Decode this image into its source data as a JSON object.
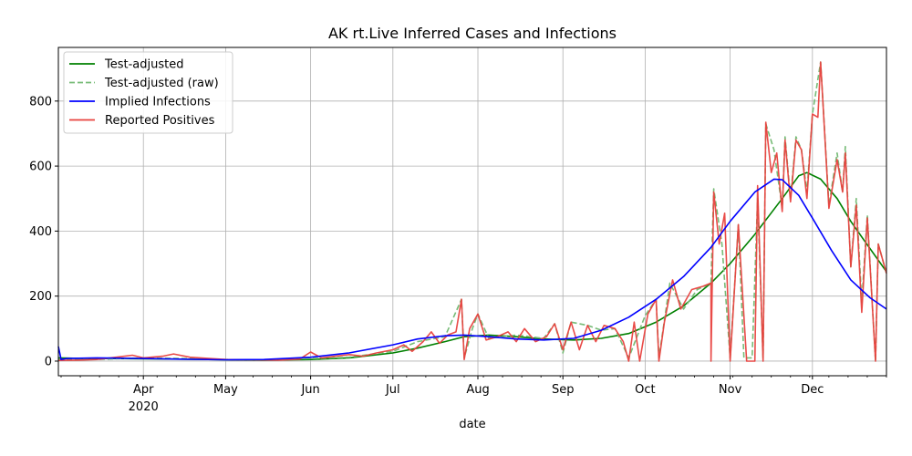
{
  "chart_data": {
    "type": "line",
    "title": "AK rt.Live Inferred Cases and Infections",
    "xlabel": "date",
    "ylabel": "",
    "x_range": [
      "2020-03-01",
      "2020-12-28"
    ],
    "ylim": [
      -45,
      965
    ],
    "y_ticks": [
      0,
      200,
      400,
      600,
      800
    ],
    "x_ticks": [
      {
        "date": "2020-04-01",
        "label": "Apr",
        "sublabel": "2020"
      },
      {
        "date": "2020-05-01",
        "label": "May",
        "sublabel": ""
      },
      {
        "date": "2020-06-01",
        "label": "Jun",
        "sublabel": ""
      },
      {
        "date": "2020-07-01",
        "label": "Jul",
        "sublabel": ""
      },
      {
        "date": "2020-08-01",
        "label": "Aug",
        "sublabel": ""
      },
      {
        "date": "2020-09-01",
        "label": "Sep",
        "sublabel": ""
      },
      {
        "date": "2020-10-01",
        "label": "Oct",
        "sublabel": ""
      },
      {
        "date": "2020-11-01",
        "label": "Nov",
        "sublabel": ""
      },
      {
        "date": "2020-12-01",
        "label": "Dec",
        "sublabel": ""
      }
    ],
    "grid": true,
    "legend_position": "top-left",
    "series": [
      {
        "name": "Test-adjusted",
        "color": "#008000",
        "style": "solid",
        "points": [
          [
            "2020-03-01",
            10
          ],
          [
            "2020-03-10",
            8
          ],
          [
            "2020-03-20",
            8
          ],
          [
            "2020-04-01",
            7
          ],
          [
            "2020-04-15",
            6
          ],
          [
            "2020-05-01",
            4
          ],
          [
            "2020-05-15",
            3
          ],
          [
            "2020-06-01",
            5
          ],
          [
            "2020-06-15",
            10
          ],
          [
            "2020-07-01",
            25
          ],
          [
            "2020-07-10",
            40
          ],
          [
            "2020-07-20",
            60
          ],
          [
            "2020-07-27",
            75
          ],
          [
            "2020-08-05",
            80
          ],
          [
            "2020-08-15",
            75
          ],
          [
            "2020-08-25",
            68
          ],
          [
            "2020-09-05",
            65
          ],
          [
            "2020-09-15",
            70
          ],
          [
            "2020-09-25",
            85
          ],
          [
            "2020-10-05",
            120
          ],
          [
            "2020-10-15",
            170
          ],
          [
            "2020-10-25",
            240
          ],
          [
            "2020-11-01",
            300
          ],
          [
            "2020-11-10",
            390
          ],
          [
            "2020-11-20",
            500
          ],
          [
            "2020-11-26",
            570
          ],
          [
            "2020-11-29",
            580
          ],
          [
            "2020-12-04",
            560
          ],
          [
            "2020-12-10",
            500
          ],
          [
            "2020-12-15",
            430
          ],
          [
            "2020-12-20",
            370
          ],
          [
            "2020-12-28",
            275
          ]
        ]
      },
      {
        "name": "Test-adjusted (raw)",
        "color": "#77bb77",
        "style": "dashed",
        "points": [
          [
            "2020-03-01",
            5
          ],
          [
            "2020-03-15",
            5
          ],
          [
            "2020-04-01",
            10
          ],
          [
            "2020-04-15",
            8
          ],
          [
            "2020-05-01",
            5
          ],
          [
            "2020-05-15",
            4
          ],
          [
            "2020-06-01",
            8
          ],
          [
            "2020-06-15",
            12
          ],
          [
            "2020-07-01",
            30
          ],
          [
            "2020-07-10",
            60
          ],
          [
            "2020-07-20",
            75
          ],
          [
            "2020-07-26",
            190
          ],
          [
            "2020-07-27",
            10
          ],
          [
            "2020-07-30",
            100
          ],
          [
            "2020-08-01",
            145
          ],
          [
            "2020-08-05",
            70
          ],
          [
            "2020-08-15",
            80
          ],
          [
            "2020-08-25",
            70
          ],
          [
            "2020-08-29",
            115
          ],
          [
            "2020-09-01",
            25
          ],
          [
            "2020-09-04",
            120
          ],
          [
            "2020-09-10",
            110
          ],
          [
            "2020-09-15",
            95
          ],
          [
            "2020-09-20",
            100
          ],
          [
            "2020-09-25",
            10
          ],
          [
            "2020-10-01",
            140
          ],
          [
            "2020-10-05",
            190
          ],
          [
            "2020-10-06",
            10
          ],
          [
            "2020-10-10",
            240
          ],
          [
            "2020-10-15",
            160
          ],
          [
            "2020-10-20",
            220
          ],
          [
            "2020-10-25",
            240
          ],
          [
            "2020-10-26",
            530
          ],
          [
            "2020-10-29",
            360
          ],
          [
            "2020-11-01",
            10
          ],
          [
            "2020-11-04",
            420
          ],
          [
            "2020-11-06",
            10
          ],
          [
            "2020-11-09",
            10
          ],
          [
            "2020-11-11",
            500
          ],
          [
            "2020-11-13",
            10
          ],
          [
            "2020-11-14",
            730
          ],
          [
            "2020-11-17",
            650
          ],
          [
            "2020-11-20",
            470
          ],
          [
            "2020-11-21",
            690
          ],
          [
            "2020-11-23",
            500
          ],
          [
            "2020-11-25",
            690
          ],
          [
            "2020-11-27",
            650
          ],
          [
            "2020-11-29",
            520
          ],
          [
            "2020-12-01",
            760
          ],
          [
            "2020-12-04",
            920
          ],
          [
            "2020-12-07",
            480
          ],
          [
            "2020-12-10",
            640
          ],
          [
            "2020-12-12",
            520
          ],
          [
            "2020-12-13",
            660
          ],
          [
            "2020-12-15",
            290
          ],
          [
            "2020-12-17",
            500
          ],
          [
            "2020-12-19",
            180
          ],
          [
            "2020-12-21",
            450
          ],
          [
            "2020-12-24",
            0
          ],
          [
            "2020-12-25",
            360
          ],
          [
            "2020-12-28",
            270
          ]
        ]
      },
      {
        "name": "Implied Infections",
        "color": "#0000ff",
        "style": "solid",
        "points": [
          [
            "2020-03-01",
            45
          ],
          [
            "2020-03-02",
            5
          ],
          [
            "2020-03-04",
            8
          ],
          [
            "2020-03-15",
            10
          ],
          [
            "2020-04-01",
            8
          ],
          [
            "2020-04-15",
            6
          ],
          [
            "2020-05-01",
            4
          ],
          [
            "2020-05-15",
            5
          ],
          [
            "2020-06-01",
            12
          ],
          [
            "2020-06-15",
            25
          ],
          [
            "2020-07-01",
            50
          ],
          [
            "2020-07-10",
            68
          ],
          [
            "2020-07-20",
            78
          ],
          [
            "2020-07-27",
            80
          ],
          [
            "2020-08-05",
            75
          ],
          [
            "2020-08-15",
            68
          ],
          [
            "2020-08-25",
            65
          ],
          [
            "2020-09-05",
            70
          ],
          [
            "2020-09-15",
            95
          ],
          [
            "2020-09-25",
            135
          ],
          [
            "2020-10-05",
            190
          ],
          [
            "2020-10-15",
            260
          ],
          [
            "2020-10-25",
            350
          ],
          [
            "2020-11-01",
            430
          ],
          [
            "2020-11-10",
            520
          ],
          [
            "2020-11-17",
            560
          ],
          [
            "2020-11-20",
            558
          ],
          [
            "2020-11-26",
            510
          ],
          [
            "2020-12-01",
            440
          ],
          [
            "2020-12-08",
            340
          ],
          [
            "2020-12-15",
            250
          ],
          [
            "2020-12-22",
            195
          ],
          [
            "2020-12-28",
            160
          ]
        ]
      },
      {
        "name": "Reported Positives",
        "color": "#e8413e",
        "style": "solid",
        "points": [
          [
            "2020-03-01",
            2
          ],
          [
            "2020-03-08",
            3
          ],
          [
            "2020-03-15",
            5
          ],
          [
            "2020-03-22",
            12
          ],
          [
            "2020-03-28",
            18
          ],
          [
            "2020-04-01",
            10
          ],
          [
            "2020-04-08",
            15
          ],
          [
            "2020-04-12",
            22
          ],
          [
            "2020-04-18",
            12
          ],
          [
            "2020-04-25",
            8
          ],
          [
            "2020-05-01",
            5
          ],
          [
            "2020-05-10",
            4
          ],
          [
            "2020-05-20",
            3
          ],
          [
            "2020-05-28",
            6
          ],
          [
            "2020-06-01",
            28
          ],
          [
            "2020-06-05",
            10
          ],
          [
            "2020-06-10",
            15
          ],
          [
            "2020-06-15",
            20
          ],
          [
            "2020-06-20",
            15
          ],
          [
            "2020-06-25",
            25
          ],
          [
            "2020-07-01",
            35
          ],
          [
            "2020-07-05",
            50
          ],
          [
            "2020-07-08",
            30
          ],
          [
            "2020-07-12",
            60
          ],
          [
            "2020-07-15",
            90
          ],
          [
            "2020-07-18",
            55
          ],
          [
            "2020-07-21",
            80
          ],
          [
            "2020-07-24",
            90
          ],
          [
            "2020-07-26",
            190
          ],
          [
            "2020-07-27",
            5
          ],
          [
            "2020-07-29",
            100
          ],
          [
            "2020-08-01",
            145
          ],
          [
            "2020-08-04",
            65
          ],
          [
            "2020-08-08",
            75
          ],
          [
            "2020-08-12",
            90
          ],
          [
            "2020-08-15",
            60
          ],
          [
            "2020-08-18",
            100
          ],
          [
            "2020-08-22",
            60
          ],
          [
            "2020-08-26",
            75
          ],
          [
            "2020-08-29",
            115
          ],
          [
            "2020-09-01",
            35
          ],
          [
            "2020-09-04",
            120
          ],
          [
            "2020-09-07",
            35
          ],
          [
            "2020-09-10",
            110
          ],
          [
            "2020-09-13",
            60
          ],
          [
            "2020-09-16",
            110
          ],
          [
            "2020-09-20",
            100
          ],
          [
            "2020-09-23",
            60
          ],
          [
            "2020-09-25",
            0
          ],
          [
            "2020-09-27",
            120
          ],
          [
            "2020-09-29",
            0
          ],
          [
            "2020-10-02",
            145
          ],
          [
            "2020-10-05",
            190
          ],
          [
            "2020-10-06",
            0
          ],
          [
            "2020-10-08",
            120
          ],
          [
            "2020-10-11",
            250
          ],
          [
            "2020-10-14",
            160
          ],
          [
            "2020-10-18",
            220
          ],
          [
            "2020-10-22",
            230
          ],
          [
            "2020-10-25",
            240
          ],
          [
            "2020-10-25",
            0
          ],
          [
            "2020-10-26",
            520
          ],
          [
            "2020-10-28",
            360
          ],
          [
            "2020-10-30",
            455
          ],
          [
            "2020-11-01",
            0
          ],
          [
            "2020-11-04",
            420
          ],
          [
            "2020-11-07",
            0
          ],
          [
            "2020-11-10",
            0
          ],
          [
            "2020-11-11",
            540
          ],
          [
            "2020-11-13",
            0
          ],
          [
            "2020-11-14",
            735
          ],
          [
            "2020-11-16",
            580
          ],
          [
            "2020-11-18",
            640
          ],
          [
            "2020-11-20",
            460
          ],
          [
            "2020-11-21",
            680
          ],
          [
            "2020-11-23",
            490
          ],
          [
            "2020-11-25",
            680
          ],
          [
            "2020-11-27",
            650
          ],
          [
            "2020-11-29",
            500
          ],
          [
            "2020-12-01",
            760
          ],
          [
            "2020-12-03",
            750
          ],
          [
            "2020-12-04",
            920
          ],
          [
            "2020-12-07",
            470
          ],
          [
            "2020-12-10",
            620
          ],
          [
            "2020-12-12",
            520
          ],
          [
            "2020-12-13",
            640
          ],
          [
            "2020-12-15",
            290
          ],
          [
            "2020-12-17",
            480
          ],
          [
            "2020-12-19",
            150
          ],
          [
            "2020-12-21",
            440
          ],
          [
            "2020-12-24",
            0
          ],
          [
            "2020-12-25",
            360
          ],
          [
            "2020-12-28",
            270
          ]
        ]
      }
    ]
  }
}
